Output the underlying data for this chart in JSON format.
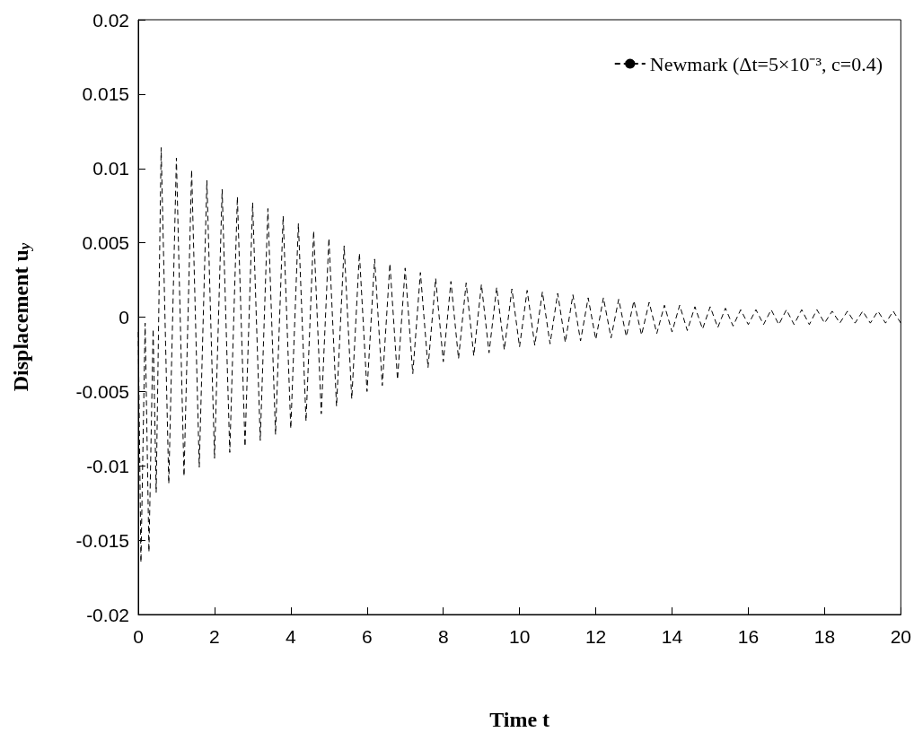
{
  "chart_data": {
    "type": "line",
    "xlabel": "Time t",
    "ylabel": "Displacement u$_{y}$",
    "x": [
      0,
      0.07,
      0.18,
      0.28,
      0.39,
      0.47,
      0.6,
      0.8,
      1.0,
      1.2,
      1.4,
      1.6,
      1.8,
      2.0,
      2.2,
      2.4,
      2.6,
      2.8,
      3.0,
      3.2,
      3.4,
      3.6,
      3.8,
      4.0,
      4.2,
      4.4,
      4.6,
      4.8,
      5.0,
      5.2,
      5.4,
      5.6,
      5.8,
      6.0,
      6.2,
      6.4,
      6.6,
      6.8,
      7.0,
      7.2,
      7.4,
      7.6,
      7.8,
      8.0,
      8.2,
      8.4,
      8.6,
      8.8,
      9.0,
      9.2,
      9.4,
      9.6,
      9.8,
      10.0,
      10.2,
      10.4,
      10.6,
      10.8,
      11.0,
      11.2,
      11.4,
      11.6,
      11.8,
      12.0,
      12.2,
      12.4,
      12.6,
      12.8,
      13.0,
      13.2,
      13.4,
      13.6,
      13.8,
      14.0,
      14.2,
      14.4,
      14.6,
      14.8,
      15.0,
      15.2,
      15.4,
      15.6,
      15.8,
      16.0,
      16.2,
      16.4,
      16.6,
      16.8,
      17.0,
      17.2,
      17.4,
      17.6,
      17.8,
      18.0,
      18.2,
      18.4,
      18.6,
      18.8,
      19.0,
      19.2,
      19.4,
      19.6,
      19.8,
      20.0
    ],
    "series": [
      {
        "name": "Newmark (Δt=5×10⁻³, c=0.4)",
        "color": "#000000",
        "values": [
          -0.001,
          -0.0165,
          -0.0004,
          -0.0158,
          -0.0008,
          -0.0118,
          0.0114,
          -0.0112,
          0.0107,
          -0.0107,
          0.0099,
          -0.0101,
          0.0092,
          -0.0095,
          0.0086,
          -0.0091,
          0.0081,
          -0.0087,
          0.0077,
          -0.0083,
          0.0073,
          -0.0079,
          0.0068,
          -0.0075,
          0.0063,
          -0.007,
          0.0058,
          -0.0065,
          0.0053,
          -0.006,
          0.0048,
          -0.0055,
          0.0043,
          -0.005,
          0.0039,
          -0.0046,
          0.0036,
          -0.0042,
          0.0033,
          -0.0038,
          0.003,
          -0.0034,
          0.0026,
          -0.003,
          0.0024,
          -0.0028,
          0.0023,
          -0.0026,
          0.0022,
          -0.0024,
          0.002,
          -0.0022,
          0.0019,
          -0.002,
          0.0018,
          -0.0019,
          0.0017,
          -0.0018,
          0.0016,
          -0.0017,
          0.0015,
          -0.0016,
          0.0013,
          -0.0015,
          0.0013,
          -0.0014,
          0.0012,
          -0.0013,
          0.0011,
          -0.0012,
          0.001,
          -0.0011,
          0.0008,
          -0.001,
          0.0008,
          -0.0009,
          0.0007,
          -0.0008,
          0.0007,
          -0.0007,
          0.0006,
          -0.0006,
          0.0005,
          -0.0005,
          0.0005,
          -0.0005,
          0.0005,
          -0.0005,
          0.0005,
          -0.0005,
          0.0005,
          -0.0005,
          0.0005,
          -0.0004,
          0.0004,
          -0.0004,
          0.0004,
          -0.0004,
          0.0004,
          -0.0004,
          0.0004,
          -0.0004,
          0.0004,
          -0.0004
        ]
      }
    ],
    "xlim": [
      0,
      20
    ],
    "xticks": [
      0,
      2,
      4,
      6,
      8,
      10,
      12,
      14,
      16,
      18,
      20
    ],
    "ylim": [
      -0.02,
      0.02
    ],
    "yticks": [
      -0.02,
      -0.015,
      -0.01,
      -0.005,
      0,
      0.005,
      0.01,
      0.015,
      0.02
    ],
    "grid": false,
    "legend": "top right",
    "marker": "none",
    "line_style": "dashed"
  }
}
